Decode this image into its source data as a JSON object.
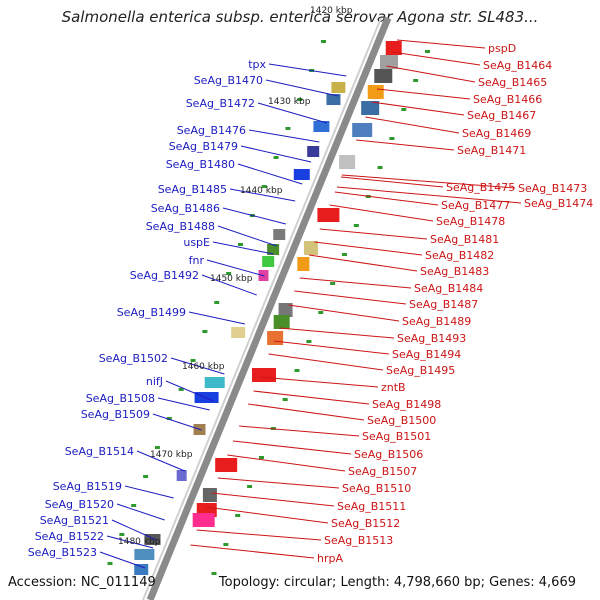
{
  "title": "Salmonella enterica subsp. enterica serovar Agona str. SL483...",
  "footer": {
    "accession": "Accession: NC_011149",
    "stats": "Topology: circular; Length: 4,798,660 bp; Genes: 4,669"
  },
  "colors": {
    "left_label": "#1c1cc0",
    "right_label": "#cc1515",
    "backbone": "#8a8a8a"
  },
  "kbp_labels": [
    "1420 kbp",
    "1430 kbp",
    "1440 kbp",
    "1450 kbp",
    "1460 kbp",
    "1470 kbp",
    "1480 kbp"
  ],
  "left_genes": [
    "tpx",
    "SeAg_B1470",
    "SeAg_B1472",
    "SeAg_B1476",
    "SeAg_B1479",
    "SeAg_B1480",
    "SeAg_B1485",
    "SeAg_B1486",
    "SeAg_B1488",
    "uspE",
    "fnr",
    "SeAg_B1492",
    "SeAg_B1499",
    "SeAg_B1502",
    "nifJ",
    "SeAg_B1508",
    "SeAg_B1509",
    "SeAg_B1514",
    "SeAg_B1519",
    "SeAg_B1520",
    "SeAg_B1521",
    "SeAg_B1522",
    "SeAg_B1523"
  ],
  "right_genes": [
    "pspD",
    "SeAg_B1464",
    "SeAg_B1465",
    "SeAg_B1466",
    "SeAg_B1467",
    "SeAg_B1469",
    "SeAg_B1471",
    "SeAg_B1473",
    "SeAg_B1474",
    "SeAg_B1475",
    "SeAg_B1477",
    "SeAg_B1478",
    "SeAg_B1481",
    "SeAg_B1482",
    "SeAg_B1483",
    "SeAg_B1484",
    "SeAg_B1487",
    "SeAg_B1489",
    "SeAg_B1493",
    "SeAg_B1494",
    "SeAg_B1495",
    "zntB",
    "SeAg_B1498",
    "SeAg_B1500",
    "SeAg_B1501",
    "SeAg_B1506",
    "SeAg_B1507",
    "SeAg_B1510",
    "SeAg_B1511",
    "SeAg_B1512",
    "SeAg_B1513",
    "hrpA"
  ]
}
